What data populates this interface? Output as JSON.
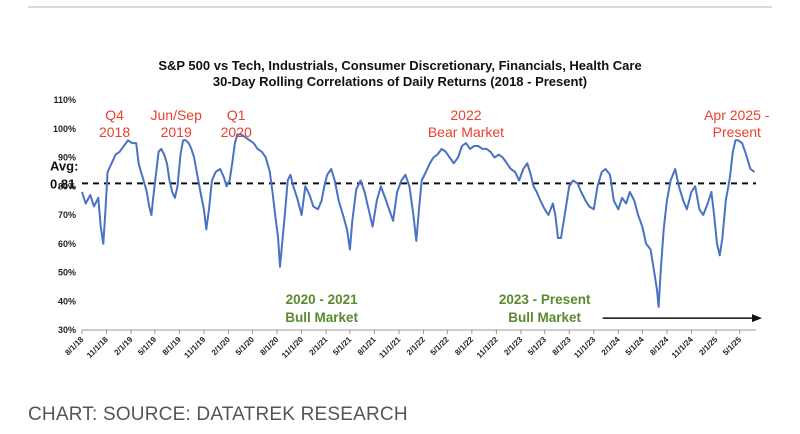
{
  "caption": "CHART: SOURCE: DATATREK RESEARCH",
  "chart_data": {
    "type": "line",
    "title": "S&P 500 vs Tech, Industrials, Consumer Discretionary, Financials, Health Care",
    "subtitle": "30-Day Rolling Correlations of Daily Returns (2018 - Present)",
    "xlabel": "",
    "ylabel": "",
    "ylim": [
      30,
      110
    ],
    "y_ticks": [
      "110%",
      "100%",
      "90%",
      "80%",
      "70%",
      "60%",
      "50%",
      "40%",
      "30%"
    ],
    "y_tick_values": [
      110,
      100,
      90,
      80,
      70,
      60,
      50,
      40,
      30
    ],
    "x_range": [
      "2018-08-01",
      "2025-07-01"
    ],
    "x_ticks": [
      "8/1/18",
      "11/1/18",
      "2/1/19",
      "5/1/19",
      "8/1/19",
      "11/1/19",
      "2/1/20",
      "5/1/20",
      "8/1/20",
      "11/1/20",
      "2/1/21",
      "5/1/21",
      "8/1/21",
      "11/1/21",
      "2/1/22",
      "5/1/22",
      "8/1/22",
      "11/1/22",
      "2/1/23",
      "5/1/23",
      "8/1/23",
      "11/1/23",
      "2/1/24",
      "5/1/24",
      "8/1/24",
      "11/1/24",
      "2/1/25",
      "5/1/25"
    ],
    "x_tick_dates": [
      "2018-08-01",
      "2018-11-01",
      "2019-02-01",
      "2019-05-01",
      "2019-08-01",
      "2019-11-01",
      "2020-02-01",
      "2020-05-01",
      "2020-08-01",
      "2020-11-01",
      "2021-02-01",
      "2021-05-01",
      "2021-08-01",
      "2021-11-01",
      "2022-02-01",
      "2022-05-01",
      "2022-08-01",
      "2022-11-01",
      "2023-02-01",
      "2023-05-01",
      "2023-08-01",
      "2023-11-01",
      "2024-02-01",
      "2024-05-01",
      "2024-08-01",
      "2024-11-01",
      "2025-02-01",
      "2025-05-01"
    ],
    "grid": false,
    "avg_line": {
      "value": 81,
      "label_line1": "Avg:",
      "label_line2": "0.81"
    },
    "annotations_red": [
      {
        "lines": [
          "Q4",
          "2018"
        ],
        "date": "2018-12-01",
        "y": 103
      },
      {
        "lines": [
          "Jun/Sep",
          "2019"
        ],
        "date": "2019-07-20",
        "y": 103
      },
      {
        "lines": [
          "Q1",
          "2020"
        ],
        "date": "2020-03-01",
        "y": 103
      },
      {
        "lines": [
          "2022",
          "Bear Market"
        ],
        "date": "2022-07-10",
        "y": 103
      },
      {
        "lines": [
          "Apr 2025 -",
          "Present"
        ],
        "date": "2025-04-20",
        "y": 103
      }
    ],
    "annotations_green": [
      {
        "lines": [
          "2020 - 2021",
          "Bull Market"
        ],
        "date": "2021-01-15",
        "y": 39
      },
      {
        "lines": [
          "2023 - Present",
          "Bull Market"
        ],
        "date": "2023-05-01",
        "y": 39
      }
    ],
    "series": [
      {
        "color": "#4a72c4",
        "points": [
          [
            "2018-08-01",
            78
          ],
          [
            "2018-08-15",
            74
          ],
          [
            "2018-09-01",
            77
          ],
          [
            "2018-09-15",
            73
          ],
          [
            "2018-10-01",
            76
          ],
          [
            "2018-10-10",
            66
          ],
          [
            "2018-10-20",
            60
          ],
          [
            "2018-10-28",
            72
          ],
          [
            "2018-11-05",
            85
          ],
          [
            "2018-11-20",
            88
          ],
          [
            "2018-12-05",
            91
          ],
          [
            "2018-12-20",
            92
          ],
          [
            "2019-01-05",
            94
          ],
          [
            "2019-01-20",
            96
          ],
          [
            "2019-02-05",
            95
          ],
          [
            "2019-02-20",
            95
          ],
          [
            "2019-03-01",
            88
          ],
          [
            "2019-03-10",
            85
          ],
          [
            "2019-03-20",
            82
          ],
          [
            "2019-04-01",
            78
          ],
          [
            "2019-04-10",
            73
          ],
          [
            "2019-04-18",
            70
          ],
          [
            "2019-04-25",
            76
          ],
          [
            "2019-05-05",
            84
          ],
          [
            "2019-05-15",
            92
          ],
          [
            "2019-05-25",
            93
          ],
          [
            "2019-06-05",
            91
          ],
          [
            "2019-06-15",
            88
          ],
          [
            "2019-06-25",
            82
          ],
          [
            "2019-07-05",
            78
          ],
          [
            "2019-07-15",
            76
          ],
          [
            "2019-07-25",
            80
          ],
          [
            "2019-08-05",
            91
          ],
          [
            "2019-08-15",
            96
          ],
          [
            "2019-08-25",
            96
          ],
          [
            "2019-09-05",
            95
          ],
          [
            "2019-09-15",
            93
          ],
          [
            "2019-09-25",
            90
          ],
          [
            "2019-10-05",
            85
          ],
          [
            "2019-10-15",
            80
          ],
          [
            "2019-10-25",
            75
          ],
          [
            "2019-11-01",
            72
          ],
          [
            "2019-11-10",
            65
          ],
          [
            "2019-11-20",
            72
          ],
          [
            "2019-12-01",
            82
          ],
          [
            "2019-12-15",
            85
          ],
          [
            "2020-01-01",
            86
          ],
          [
            "2020-01-15",
            83
          ],
          [
            "2020-01-25",
            80
          ],
          [
            "2020-02-05",
            82
          ],
          [
            "2020-02-15",
            88
          ],
          [
            "2020-02-25",
            95
          ],
          [
            "2020-03-05",
            98
          ],
          [
            "2020-03-20",
            98
          ],
          [
            "2020-04-05",
            97
          ],
          [
            "2020-04-20",
            96
          ],
          [
            "2020-05-05",
            95
          ],
          [
            "2020-05-20",
            93
          ],
          [
            "2020-06-05",
            92
          ],
          [
            "2020-06-20",
            90
          ],
          [
            "2020-07-05",
            85
          ],
          [
            "2020-07-15",
            78
          ],
          [
            "2020-07-25",
            70
          ],
          [
            "2020-08-05",
            62
          ],
          [
            "2020-08-12",
            52
          ],
          [
            "2020-08-20",
            60
          ],
          [
            "2020-09-01",
            72
          ],
          [
            "2020-09-10",
            82
          ],
          [
            "2020-09-20",
            84
          ],
          [
            "2020-10-01",
            80
          ],
          [
            "2020-10-15",
            76
          ],
          [
            "2020-11-01",
            70
          ],
          [
            "2020-11-15",
            80
          ],
          [
            "2020-12-01",
            77
          ],
          [
            "2020-12-15",
            73
          ],
          [
            "2021-01-01",
            72
          ],
          [
            "2021-01-15",
            75
          ],
          [
            "2021-01-25",
            80
          ],
          [
            "2021-02-05",
            84
          ],
          [
            "2021-02-20",
            86
          ],
          [
            "2021-03-05",
            82
          ],
          [
            "2021-03-20",
            75
          ],
          [
            "2021-04-05",
            70
          ],
          [
            "2021-04-20",
            65
          ],
          [
            "2021-05-01",
            58
          ],
          [
            "2021-05-10",
            68
          ],
          [
            "2021-05-25",
            79
          ],
          [
            "2021-06-10",
            82
          ],
          [
            "2021-06-25",
            78
          ],
          [
            "2021-07-10",
            72
          ],
          [
            "2021-07-25",
            66
          ],
          [
            "2021-08-10",
            75
          ],
          [
            "2021-08-25",
            80
          ],
          [
            "2021-09-10",
            76
          ],
          [
            "2021-09-25",
            72
          ],
          [
            "2021-10-10",
            68
          ],
          [
            "2021-10-25",
            78
          ],
          [
            "2021-11-10",
            82
          ],
          [
            "2021-11-25",
            84
          ],
          [
            "2021-12-10",
            80
          ],
          [
            "2021-12-25",
            70
          ],
          [
            "2022-01-05",
            61
          ],
          [
            "2022-01-15",
            72
          ],
          [
            "2022-01-25",
            82
          ],
          [
            "2022-02-10",
            85
          ],
          [
            "2022-02-25",
            88
          ],
          [
            "2022-03-10",
            90
          ],
          [
            "2022-03-25",
            91
          ],
          [
            "2022-04-10",
            93
          ],
          [
            "2022-04-25",
            92
          ],
          [
            "2022-05-10",
            90
          ],
          [
            "2022-05-25",
            88
          ],
          [
            "2022-06-10",
            90
          ],
          [
            "2022-06-25",
            94
          ],
          [
            "2022-07-10",
            95
          ],
          [
            "2022-07-25",
            93
          ],
          [
            "2022-08-10",
            94
          ],
          [
            "2022-08-25",
            94
          ],
          [
            "2022-09-10",
            93
          ],
          [
            "2022-09-25",
            93
          ],
          [
            "2022-10-10",
            92
          ],
          [
            "2022-10-25",
            90
          ],
          [
            "2022-11-10",
            91
          ],
          [
            "2022-11-25",
            90
          ],
          [
            "2022-12-10",
            88
          ],
          [
            "2022-12-25",
            86
          ],
          [
            "2023-01-10",
            85
          ],
          [
            "2023-01-25",
            82
          ],
          [
            "2023-02-10",
            86
          ],
          [
            "2023-02-25",
            88
          ],
          [
            "2023-03-10",
            84
          ],
          [
            "2023-03-20",
            80
          ],
          [
            "2023-04-01",
            78
          ],
          [
            "2023-04-15",
            75
          ],
          [
            "2023-05-01",
            72
          ],
          [
            "2023-05-15",
            70
          ],
          [
            "2023-06-01",
            74
          ],
          [
            "2023-06-10",
            70
          ],
          [
            "2023-06-20",
            62
          ],
          [
            "2023-07-01",
            62
          ],
          [
            "2023-07-15",
            70
          ],
          [
            "2023-08-01",
            80
          ],
          [
            "2023-08-15",
            82
          ],
          [
            "2023-09-01",
            81
          ],
          [
            "2023-09-15",
            78
          ],
          [
            "2023-10-01",
            75
          ],
          [
            "2023-10-15",
            73
          ],
          [
            "2023-11-01",
            72
          ],
          [
            "2023-11-15",
            80
          ],
          [
            "2023-12-01",
            85
          ],
          [
            "2023-12-15",
            86
          ],
          [
            "2024-01-01",
            84
          ],
          [
            "2024-01-15",
            75
          ],
          [
            "2024-02-01",
            72
          ],
          [
            "2024-02-15",
            76
          ],
          [
            "2024-03-01",
            74
          ],
          [
            "2024-03-15",
            78
          ],
          [
            "2024-04-01",
            75
          ],
          [
            "2024-04-15",
            70
          ],
          [
            "2024-05-01",
            66
          ],
          [
            "2024-05-15",
            60
          ],
          [
            "2024-06-01",
            58
          ],
          [
            "2024-06-15",
            50
          ],
          [
            "2024-06-25",
            44
          ],
          [
            "2024-07-01",
            38
          ],
          [
            "2024-07-10",
            52
          ],
          [
            "2024-07-20",
            65
          ],
          [
            "2024-08-01",
            75
          ],
          [
            "2024-08-15",
            82
          ],
          [
            "2024-09-01",
            86
          ],
          [
            "2024-09-15",
            80
          ],
          [
            "2024-10-01",
            75
          ],
          [
            "2024-10-15",
            72
          ],
          [
            "2024-11-01",
            78
          ],
          [
            "2024-11-15",
            80
          ],
          [
            "2024-12-01",
            72
          ],
          [
            "2024-12-15",
            70
          ],
          [
            "2025-01-01",
            74
          ],
          [
            "2025-01-15",
            78
          ],
          [
            "2025-01-25",
            70
          ],
          [
            "2025-02-05",
            60
          ],
          [
            "2025-02-15",
            56
          ],
          [
            "2025-02-25",
            62
          ],
          [
            "2025-03-10",
            75
          ],
          [
            "2025-03-25",
            83
          ],
          [
            "2025-04-05",
            92
          ],
          [
            "2025-04-15",
            96
          ],
          [
            "2025-04-25",
            96
          ],
          [
            "2025-05-10",
            95
          ],
          [
            "2025-05-25",
            91
          ],
          [
            "2025-06-10",
            86
          ],
          [
            "2025-06-25",
            85
          ]
        ]
      }
    ]
  }
}
